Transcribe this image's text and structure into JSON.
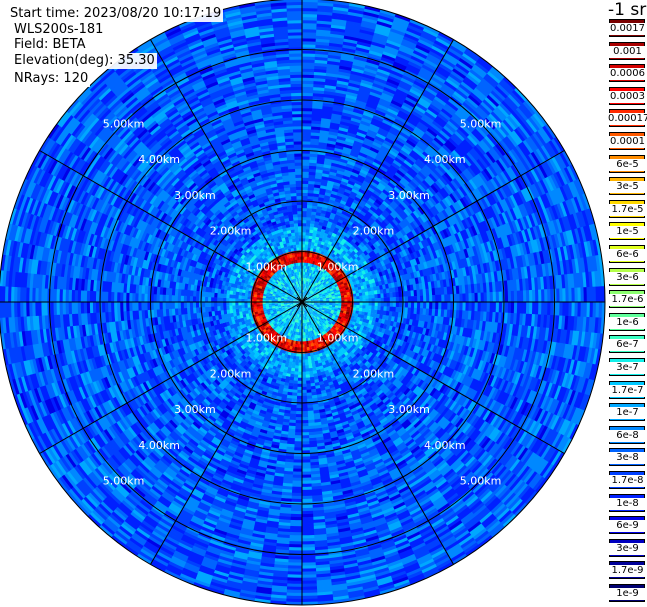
{
  "info": {
    "start_time": "Start time: 2023/08/20 10:17:19",
    "device": "WLS200s-181",
    "field": "Field: BETA",
    "elevation": "Elevation(deg): 35.30",
    "nrays": "NRays: 120"
  },
  "colorbar": {
    "unit": "-1 sr",
    "labels": [
      "0.0017",
      "0.001",
      "0.0006",
      "0.0003",
      "0.00017",
      "0.0001",
      "6e-5",
      "3e-5",
      "1.7e-5",
      "1e-5",
      "6e-6",
      "3e-6",
      "1.7e-6",
      "1e-6",
      "6e-7",
      "3e-7",
      "1.7e-7",
      "1e-7",
      "6e-8",
      "3e-8",
      "1.7e-8",
      "1e-8",
      "6e-9",
      "3e-9",
      "1.7e-9",
      "1e-9"
    ],
    "colors": [
      "#7a0000",
      "#a80000",
      "#d40000",
      "#ff0000",
      "#ff2a00",
      "#ff5a00",
      "#ff8c00",
      "#ffb400",
      "#ffd800",
      "#ffff00",
      "#e0ff1e",
      "#b4ff4a",
      "#8cff70",
      "#5eff9a",
      "#38ffc4",
      "#14f0ea",
      "#00c8ff",
      "#00a8ff",
      "#0088ff",
      "#0064ff",
      "#0040ff",
      "#0020ff",
      "#0000e8",
      "#0000c0",
      "#000098",
      "#000070"
    ]
  },
  "chart_data": {
    "type": "heatmap",
    "projection": "polar PPI",
    "field": "BETA",
    "elevation_deg": 35.3,
    "n_rays": 120,
    "range_rings_km": [
      1.0,
      2.0,
      3.0,
      4.0,
      5.0
    ],
    "range_labels": [
      "1.00km",
      "2.00km",
      "3.00km",
      "4.00km",
      "5.00km"
    ],
    "max_range_km": 6.0,
    "spokes_deg": [
      0,
      30,
      60,
      90,
      120,
      150,
      180,
      210,
      240,
      270,
      300,
      330
    ],
    "scale": "log",
    "value_range": [
      1e-09,
      0.0017
    ],
    "features": [
      {
        "range_km": [
          0.0,
          0.8
        ],
        "beta": 1.7e-07
      },
      {
        "range_km": [
          0.8,
          1.0
        ],
        "beta": 0.0003
      },
      {
        "range_km": [
          1.0,
          1.5
        ],
        "beta": 1e-07
      },
      {
        "range_km": [
          1.5,
          6.0
        ],
        "beta": 3e-08
      }
    ]
  }
}
